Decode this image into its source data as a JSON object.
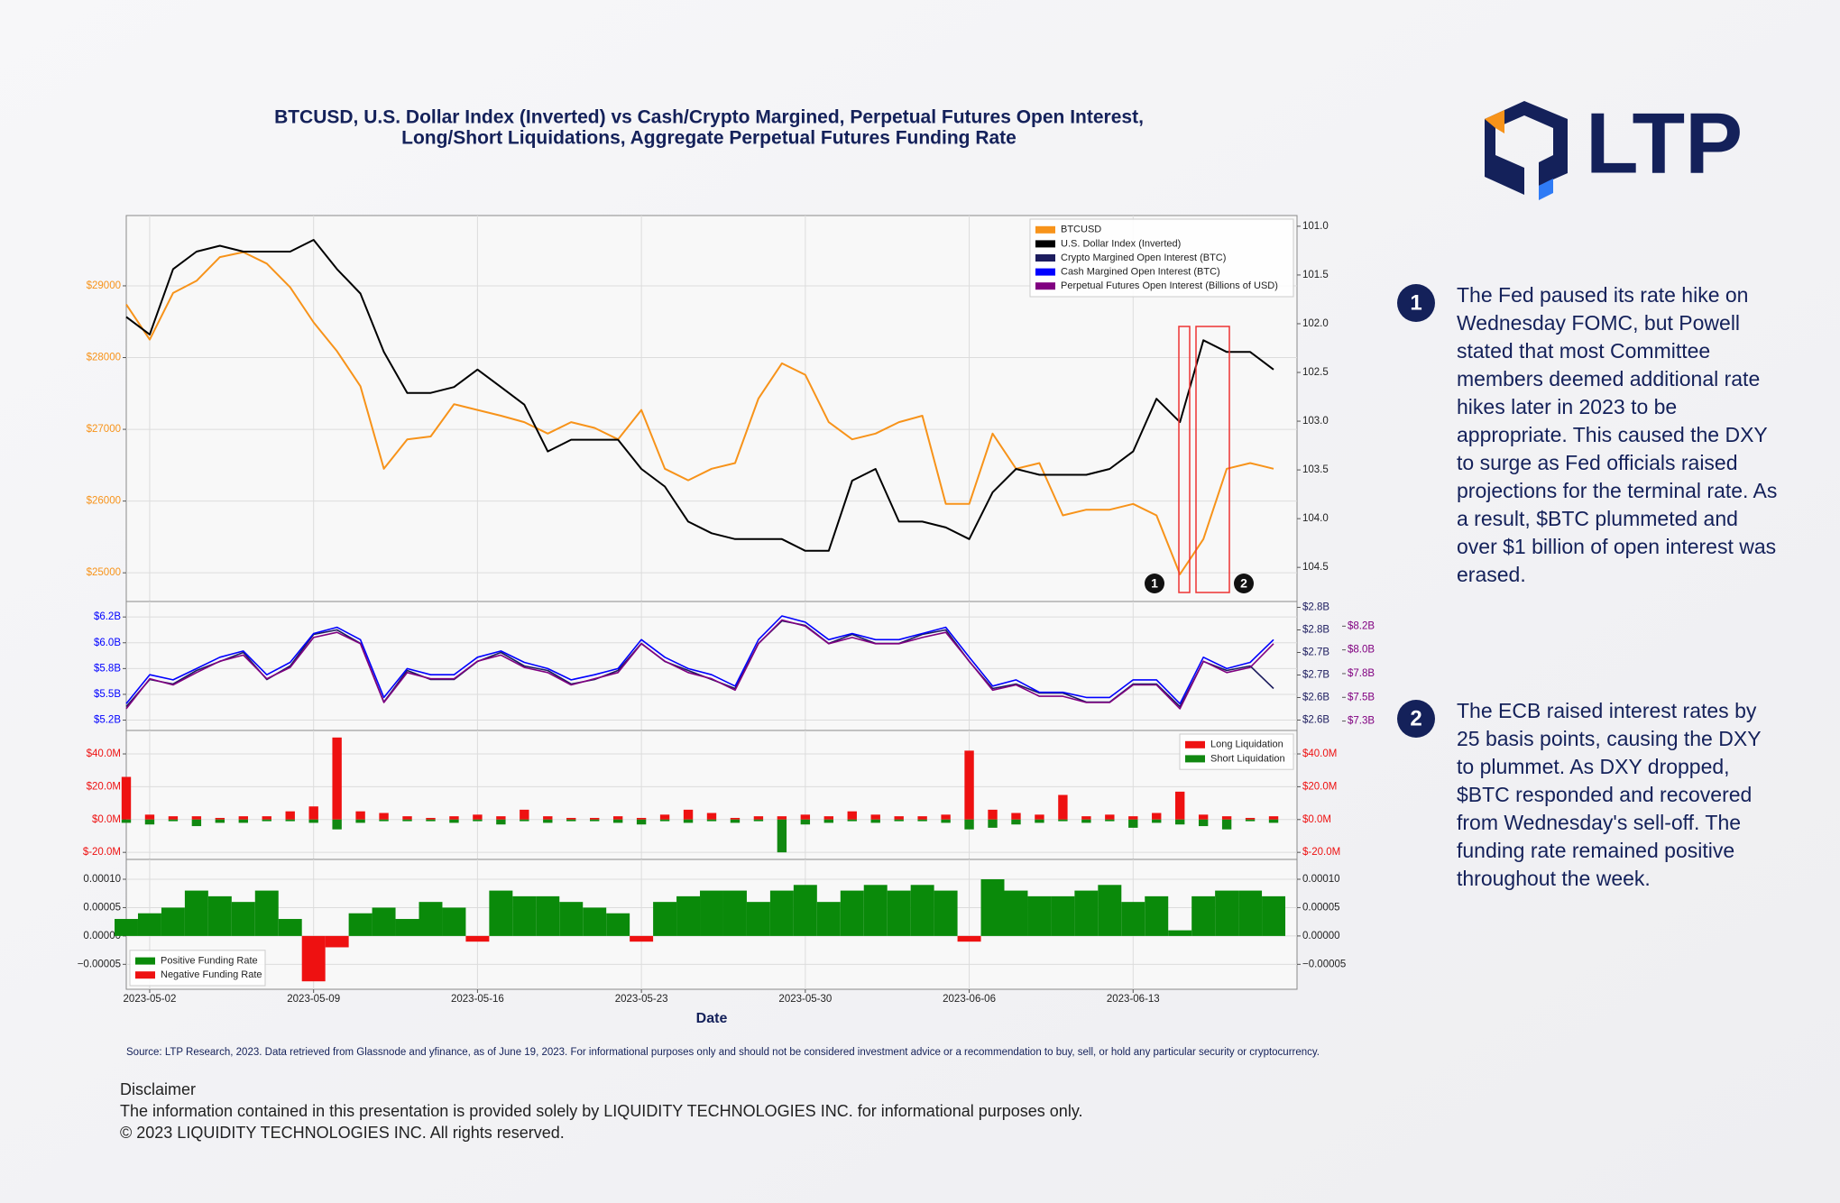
{
  "logo": "LTP",
  "notes": [
    {
      "marker": "1",
      "text": "The Fed paused its rate hike on Wednesday FOMC, but Powell stated that most Committee members deemed additional rate hikes later in 2023 to be appropriate. This caused the DXY to surge as Fed officials raised projections for the terminal rate. As a result, $BTC plummeted and over $1 billion of open interest was erased."
    },
    {
      "marker": "2",
      "text": "The ECB raised interest rates by 25 basis points, causing the DXY to plummet. As DXY dropped, $BTC responded and recovered from Wednesday's sell-off. The funding rate remained positive throughout the week."
    }
  ],
  "source": "Source: LTP Research, 2023. Data retrieved from Glassnode and yfinance, as of June 19, 2023. For informational purposes only and should not be considered investment advice or a recommendation to buy, sell, or hold any particular security or cryptocurrency.",
  "disclaimer": [
    "Disclaimer",
    "The information contained in this presentation is provided solely by LIQUIDITY TECHNOLOGIES INC. for informational purposes only.",
    "© 2023 LIQUIDITY TECHNOLOGIES INC. All rights reserved."
  ],
  "chart_data": [
    {
      "type": "line",
      "title": [
        "BTCUSD, U.S. Dollar Index (Inverted) vs Cash/Crypto Margined, Perpetual Futures Open Interest,",
        "Long/Short Liquidations, Aggregate Perpetual Futures Funding Rate"
      ],
      "x": [
        "2023-05-01",
        "2023-05-02",
        "2023-05-03",
        "2023-05-04",
        "2023-05-05",
        "2023-05-06",
        "2023-05-07",
        "2023-05-08",
        "2023-05-09",
        "2023-05-10",
        "2023-05-11",
        "2023-05-12",
        "2023-05-13",
        "2023-05-14",
        "2023-05-15",
        "2023-05-16",
        "2023-05-17",
        "2023-05-18",
        "2023-05-19",
        "2023-05-20",
        "2023-05-21",
        "2023-05-22",
        "2023-05-23",
        "2023-05-24",
        "2023-05-25",
        "2023-05-26",
        "2023-05-27",
        "2023-05-28",
        "2023-05-29",
        "2023-05-30",
        "2023-05-31",
        "2023-06-01",
        "2023-06-02",
        "2023-06-03",
        "2023-06-04",
        "2023-06-05",
        "2023-06-06",
        "2023-06-07",
        "2023-06-08",
        "2023-06-09",
        "2023-06-10",
        "2023-06-11",
        "2023-06-12",
        "2023-06-13",
        "2023-06-14",
        "2023-06-15",
        "2023-06-16",
        "2023-06-17",
        "2023-06-18",
        "2023-06-19"
      ],
      "series": [
        {
          "name": "BTCUSD",
          "color": "#f7931a",
          "axis": "y",
          "values": [
            28740,
            28250,
            28900,
            29070,
            29400,
            29470,
            29310,
            28980,
            28490,
            28090,
            27600,
            26450,
            26860,
            26900,
            27350,
            27270,
            27190,
            27100,
            26940,
            27100,
            27020,
            26860,
            27270,
            26450,
            26290,
            26450,
            26530,
            27430,
            27920,
            27760,
            27100,
            26860,
            26940,
            27100,
            27190,
            25960,
            25960,
            26940,
            26450,
            26530,
            25800,
            25880,
            25880,
            25960,
            25800,
            24980,
            25470,
            26450,
            26530,
            26450
          ]
        },
        {
          "name": "U.S. Dollar Index (Inverted)",
          "color": "#000000",
          "axis": "y2",
          "values": [
            101.93,
            102.11,
            101.44,
            101.26,
            101.2,
            101.26,
            101.26,
            101.26,
            101.14,
            101.44,
            101.69,
            102.29,
            102.71,
            102.71,
            102.65,
            102.47,
            102.65,
            102.83,
            103.31,
            103.19,
            103.19,
            103.19,
            103.49,
            103.67,
            104.03,
            104.15,
            104.21,
            104.21,
            104.21,
            104.33,
            104.33,
            103.61,
            103.49,
            104.03,
            104.03,
            104.09,
            104.21,
            103.73,
            103.49,
            103.55,
            103.55,
            103.55,
            103.49,
            103.31,
            102.77,
            103.01,
            102.17,
            102.29,
            102.29,
            102.47
          ]
        }
      ],
      "ylim": [
        24600,
        29980
      ],
      "yticks": [
        {
          "value": 25000,
          "label": "$25000"
        },
        {
          "value": 26000,
          "label": "$26000"
        },
        {
          "value": 27000,
          "label": "$27000"
        },
        {
          "value": 28000,
          "label": "$28000"
        },
        {
          "value": 29000,
          "label": "$29000"
        }
      ],
      "y2lim": [
        100.89,
        104.85
      ],
      "y2_inverted": true,
      "y2ticks": [
        {
          "value": 101,
          "label": "101.0"
        },
        101.5,
        {
          "value": 102,
          "label": "102.0"
        },
        102.5,
        {
          "value": 103,
          "label": "103.0"
        },
        103.5,
        {
          "value": 104,
          "label": "104.0"
        },
        104.5
      ],
      "grid": true,
      "legend": "upper right",
      "annotations": [
        {
          "text": "1"
        },
        {
          "text": "2"
        }
      ]
    },
    {
      "type": "line",
      "series": [
        {
          "name": "Crypto Margined Open Interest (BTC)",
          "color": "#1c1c5e",
          "axis": "y2",
          "values": [
            2.62,
            2.68,
            2.67,
            2.7,
            2.72,
            2.74,
            2.68,
            2.71,
            2.78,
            2.79,
            2.76,
            2.63,
            2.7,
            2.68,
            2.68,
            2.72,
            2.74,
            2.71,
            2.7,
            2.67,
            2.68,
            2.7,
            2.76,
            2.72,
            2.7,
            2.68,
            2.66,
            2.76,
            2.81,
            2.8,
            2.76,
            2.78,
            2.76,
            2.76,
            2.78,
            2.79,
            2.72,
            2.66,
            2.67,
            2.65,
            2.65,
            2.63,
            2.63,
            2.67,
            2.67,
            2.62,
            2.72,
            2.7,
            2.71,
            2.66
          ]
        },
        {
          "name": "Cash Margined Open Interest (BTC)",
          "color": "#0000ff",
          "axis": "y",
          "values": [
            5.41,
            5.69,
            5.64,
            5.75,
            5.86,
            5.92,
            5.69,
            5.81,
            6.09,
            6.15,
            6.03,
            5.47,
            5.75,
            5.69,
            5.69,
            5.86,
            5.92,
            5.81,
            5.75,
            5.64,
            5.69,
            5.75,
            6.03,
            5.86,
            5.75,
            5.69,
            5.58,
            6.03,
            6.26,
            6.2,
            6.03,
            6.09,
            6.03,
            6.03,
            6.09,
            6.15,
            5.86,
            5.58,
            5.64,
            5.52,
            5.52,
            5.47,
            5.47,
            5.64,
            5.64,
            5.41,
            5.86,
            5.75,
            5.81,
            6.03
          ]
        },
        {
          "name": "Perpetual Futures Open Interest (Billions of USD)",
          "color": "#800080",
          "axis": "y3",
          "values": [
            7.43,
            7.72,
            7.66,
            7.78,
            7.89,
            7.95,
            7.72,
            7.83,
            8.12,
            8.17,
            8.06,
            7.49,
            7.78,
            7.72,
            7.72,
            7.89,
            7.95,
            7.83,
            7.78,
            7.66,
            7.72,
            7.78,
            8.06,
            7.89,
            7.78,
            7.72,
            7.61,
            8.06,
            8.29,
            8.23,
            8.06,
            8.12,
            8.06,
            8.06,
            8.12,
            8.17,
            7.89,
            7.61,
            7.66,
            7.55,
            7.55,
            7.49,
            7.49,
            7.66,
            7.66,
            7.43,
            7.89,
            7.78,
            7.83,
            8.06
          ]
        }
      ],
      "ylim": [
        5.15,
        6.4
      ],
      "yticks": [
        {
          "value": 5.25,
          "label": "$5.2B"
        },
        {
          "value": 5.5,
          "label": "$5.5B"
        },
        {
          "value": 5.75,
          "label": "$5.8B"
        },
        {
          "value": 6,
          "label": "$6.0B"
        },
        {
          "value": 6.25,
          "label": "$6.2B"
        }
      ],
      "y2lim": [
        2.567,
        2.853
      ],
      "y2ticks": [
        {
          "value": 2.59,
          "label": "$2.6B"
        },
        {
          "value": 2.64,
          "label": "$2.6B"
        },
        {
          "value": 2.69,
          "label": "$2.7B"
        },
        {
          "value": 2.74,
          "label": "$2.7B"
        },
        {
          "value": 2.79,
          "label": "$2.8B"
        },
        {
          "value": 2.84,
          "label": "$2.8B"
        }
      ],
      "y3lim": [
        7.219,
        8.469
      ],
      "y3ticks": [
        {
          "value": 7.31,
          "label": "$7.3B"
        },
        {
          "value": 7.54,
          "label": "$7.5B"
        },
        {
          "value": 7.77,
          "label": "$7.8B"
        },
        {
          "value": 8,
          "label": "$8.0B"
        },
        {
          "value": 8.23,
          "label": "$8.2B"
        }
      ],
      "grid": true
    },
    {
      "type": "bar",
      "series": [
        {
          "name": "Long Liquidation",
          "color": "#ee1111",
          "values": [
            26,
            3,
            2,
            2,
            1,
            2,
            2,
            5,
            8,
            50,
            5,
            4,
            2,
            1,
            2,
            3,
            2,
            6,
            2,
            1,
            1,
            2,
            1,
            3,
            6,
            4,
            1,
            2,
            2,
            3,
            2,
            5,
            3,
            2,
            2,
            3,
            42,
            6,
            4,
            3,
            15,
            2,
            3,
            2,
            4,
            17,
            3,
            2,
            1,
            2
          ]
        },
        {
          "name": "Short Liquidation",
          "color": "#118811",
          "values": [
            -2,
            -3,
            -1,
            -4,
            -2,
            -2,
            -1,
            -1,
            -2,
            -6,
            -2,
            -1,
            -1,
            -1,
            -2,
            -1,
            -3,
            -1,
            -2,
            -1,
            -1,
            -2,
            -3,
            -1,
            -2,
            -1,
            -2,
            -1,
            -20,
            -3,
            -2,
            -1,
            -2,
            -1,
            -1,
            -2,
            -6,
            -5,
            -3,
            -2,
            -1,
            -2,
            -1,
            -5,
            -2,
            -3,
            -4,
            -6,
            -1,
            -2
          ]
        }
      ],
      "ylim": [
        -24.3,
        54.3
      ],
      "yticks": [
        {
          "value": -20,
          "label": "$-20.0M"
        },
        {
          "value": 0,
          "label": "$0.0M"
        },
        {
          "value": 20,
          "label": "$20.0M"
        },
        {
          "value": 40,
          "label": "$40.0M"
        }
      ],
      "mirror_y": true,
      "grid": true,
      "legend": "upper right"
    },
    {
      "type": "area",
      "values": [
        3e-05,
        4e-05,
        5e-05,
        8e-05,
        7e-05,
        6e-05,
        8e-05,
        3e-05,
        -8e-05,
        -2e-05,
        4e-05,
        5e-05,
        3e-05,
        6e-05,
        5e-05,
        -1e-05,
        8e-05,
        7e-05,
        7e-05,
        6e-05,
        5e-05,
        4e-05,
        -1e-05,
        6e-05,
        7e-05,
        8e-05,
        8e-05,
        6e-05,
        8e-05,
        9e-05,
        6e-05,
        8e-05,
        9e-05,
        8e-05,
        9e-05,
        8e-05,
        -1e-05,
        0.0001,
        8e-05,
        7e-05,
        7e-05,
        8e-05,
        9e-05,
        6e-05,
        7e-05,
        1e-05,
        7e-05,
        8e-05,
        8e-05,
        7e-05
      ],
      "legend_entries": [
        {
          "name": "Positive Funding Rate",
          "color": "#0a8a0a"
        },
        {
          "name": "Negative Funding Rate",
          "color": "#ee1111"
        }
      ],
      "ylim": [
        -9.4e-05,
        0.000135
      ],
      "yticks": [
        {
          "value": -5e-05,
          "label": "−0.00005"
        },
        {
          "value": 0,
          "label": "0.00000"
        },
        {
          "value": 5e-05,
          "label": "0.00005"
        },
        {
          "value": 0.0001,
          "label": "0.00010"
        }
      ],
      "mirror_y": true,
      "grid": true,
      "legend": "lower left",
      "xlim": [
        "2023-05-01",
        "2023-06-20"
      ],
      "xticks": [
        "2023-05-02",
        "2023-05-09",
        "2023-05-16",
        "2023-05-23",
        "2023-05-30",
        "2023-06-06",
        "2023-06-13"
      ],
      "xlabel": "Date"
    }
  ]
}
